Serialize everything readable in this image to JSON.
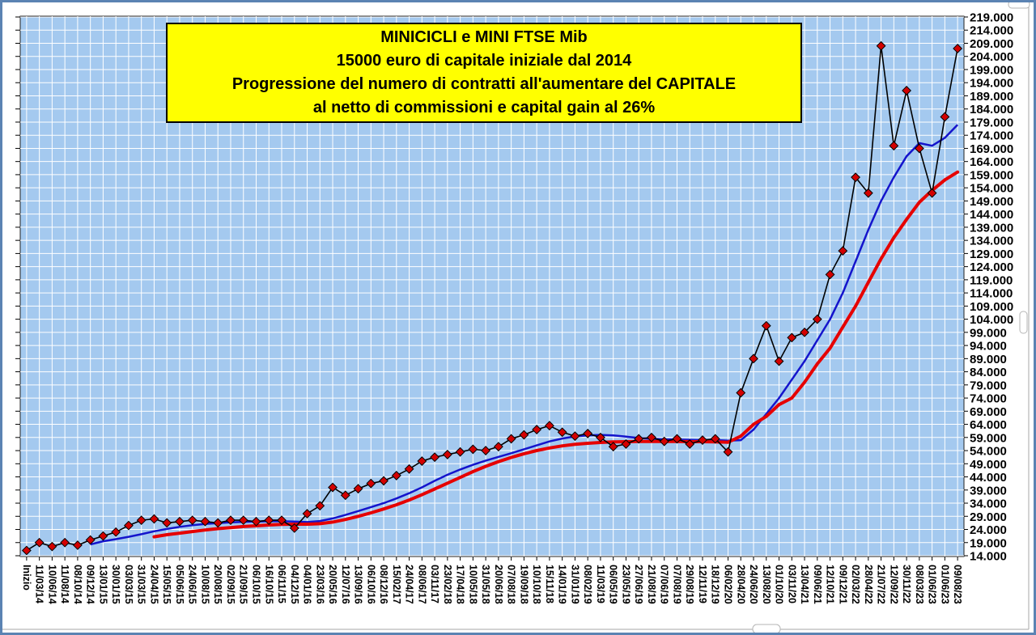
{
  "chart_data": {
    "type": "line",
    "title_lines": [
      "MINICICLI e MINI FTSE Mib",
      "15000 euro di capitale iniziale dal 2014",
      "Progressione del numero di contratti all'aumentare del CAPITALE",
      "al netto di commissioni e capital gain al 26%"
    ],
    "legend": "none",
    "grid": true,
    "colors": {
      "plot_bg": "#a4c9ef",
      "grid_color": "#ffffff",
      "title_bg": "#ffff00",
      "frame": "#5b83b3",
      "main_line": "#000000",
      "marker": "#d40000",
      "ma_fast": "#1414cc",
      "ma_slow": "#e60000"
    },
    "y_axis": {
      "min": 14000,
      "max": 219000,
      "step": 5000,
      "tick_format": "dot-thousands"
    },
    "categories": [
      "Inizio",
      "11/03/14",
      "10/06/14",
      "11/08/14",
      "08/10/14",
      "09/12/14",
      "13/01/15",
      "30/01/15",
      "03/03/15",
      "31/03/15",
      "24/04/15",
      "15/05/15",
      "05/06/15",
      "24/06/15",
      "10/08/15",
      "20/08/15",
      "02/09/15",
      "21/09/15",
      "06/10/15",
      "16/10/15",
      "06/11/15",
      "04/12/15",
      "04/01/16",
      "23/03/16",
      "20/05/16",
      "12/07/16",
      "13/09/16",
      "06/10/16",
      "08/12/16",
      "15/02/17",
      "24/04/17",
      "08/06/17",
      "03/11/17",
      "23/02/18",
      "17/04/18",
      "10/05/18",
      "31/05/18",
      "20/06/18",
      "07/08/18",
      "19/09/18",
      "10/10/18",
      "15/11/18",
      "14/01/19",
      "31/01/19",
      "08/02/19",
      "11/03/19",
      "06/05/19",
      "23/05/19",
      "27/06/19",
      "21/08/19",
      "07/06/19",
      "07/08/19",
      "29/08/19",
      "12/11/19",
      "18/12/19",
      "06/02/20",
      "28/04/20",
      "24/06/20",
      "13/08/20",
      "01/10/20",
      "03/11/20",
      "13/04/21",
      "09/06/21",
      "12/10/21",
      "09/12/21",
      "02/03/22",
      "28/04/22",
      "21/07/22",
      "12/09/22",
      "30/11/22",
      "08/03/23",
      "01/06/23",
      "01/06/23",
      "09/08/23"
    ],
    "series": [
      {
        "name": "capitale-minicicli",
        "style": "line-markers",
        "line_color": "#000000",
        "marker": "diamond",
        "marker_color": "#d40000",
        "values": [
          16000,
          19000,
          17500,
          19000,
          18000,
          20000,
          21500,
          23000,
          25500,
          27500,
          28000,
          26500,
          27000,
          27500,
          27000,
          26500,
          27500,
          27500,
          27000,
          27500,
          27500,
          24500,
          30000,
          33000,
          40000,
          37000,
          39500,
          41500,
          42500,
          44500,
          47000,
          50000,
          51500,
          52500,
          53500,
          54500,
          54000,
          55500,
          58500,
          60000,
          62000,
          63500,
          61000,
          59500,
          60500,
          59000,
          55500,
          56500,
          58500,
          59000,
          57500,
          58500,
          56500,
          58000,
          58500,
          53500,
          76000,
          89000,
          101500,
          88000,
          97000,
          99000,
          104000,
          121000,
          130000,
          158000,
          152000,
          208000,
          170000,
          191000,
          169000,
          152000,
          181000,
          207000
        ]
      },
      {
        "name": "media-mobile-veloce",
        "style": "line",
        "color": "#1414cc",
        "values": [
          null,
          null,
          null,
          null,
          null,
          18300,
          19500,
          20300,
          21200,
          22200,
          23300,
          24200,
          25000,
          25600,
          26100,
          26400,
          26700,
          26900,
          27000,
          27100,
          27100,
          27000,
          26800,
          27200,
          28200,
          29500,
          31000,
          32500,
          34000,
          35800,
          37800,
          40000,
          42500,
          44800,
          46800,
          48600,
          50200,
          51600,
          53000,
          54500,
          56000,
          57500,
          58600,
          59400,
          59800,
          60000,
          59800,
          59300,
          58800,
          58500,
          58300,
          58200,
          58100,
          58000,
          58000,
          57800,
          58000,
          62000,
          68000,
          74000,
          81000,
          88000,
          96000,
          104000,
          114000,
          126000,
          138000,
          149000,
          158000,
          166000,
          171000,
          170000,
          173000,
          178000
        ]
      },
      {
        "name": "media-mobile-lenta",
        "style": "line",
        "color": "#e60000",
        "values": [
          null,
          null,
          null,
          null,
          null,
          null,
          null,
          null,
          null,
          null,
          21200,
          22000,
          22600,
          23200,
          23800,
          24300,
          24700,
          25100,
          25400,
          25700,
          25900,
          26000,
          26000,
          26200,
          26800,
          27800,
          29000,
          30300,
          31800,
          33400,
          35200,
          37200,
          39400,
          41600,
          43800,
          46000,
          48000,
          49800,
          51400,
          52800,
          54000,
          55000,
          55800,
          56400,
          56800,
          57100,
          57300,
          57400,
          57500,
          57500,
          57500,
          57500,
          57400,
          57400,
          57300,
          57200,
          59500,
          64000,
          67000,
          71500,
          74000,
          80000,
          87000,
          93000,
          101000,
          109000,
          118000,
          127000,
          135000,
          142000,
          148500,
          153000,
          157000,
          160000
        ]
      }
    ]
  }
}
